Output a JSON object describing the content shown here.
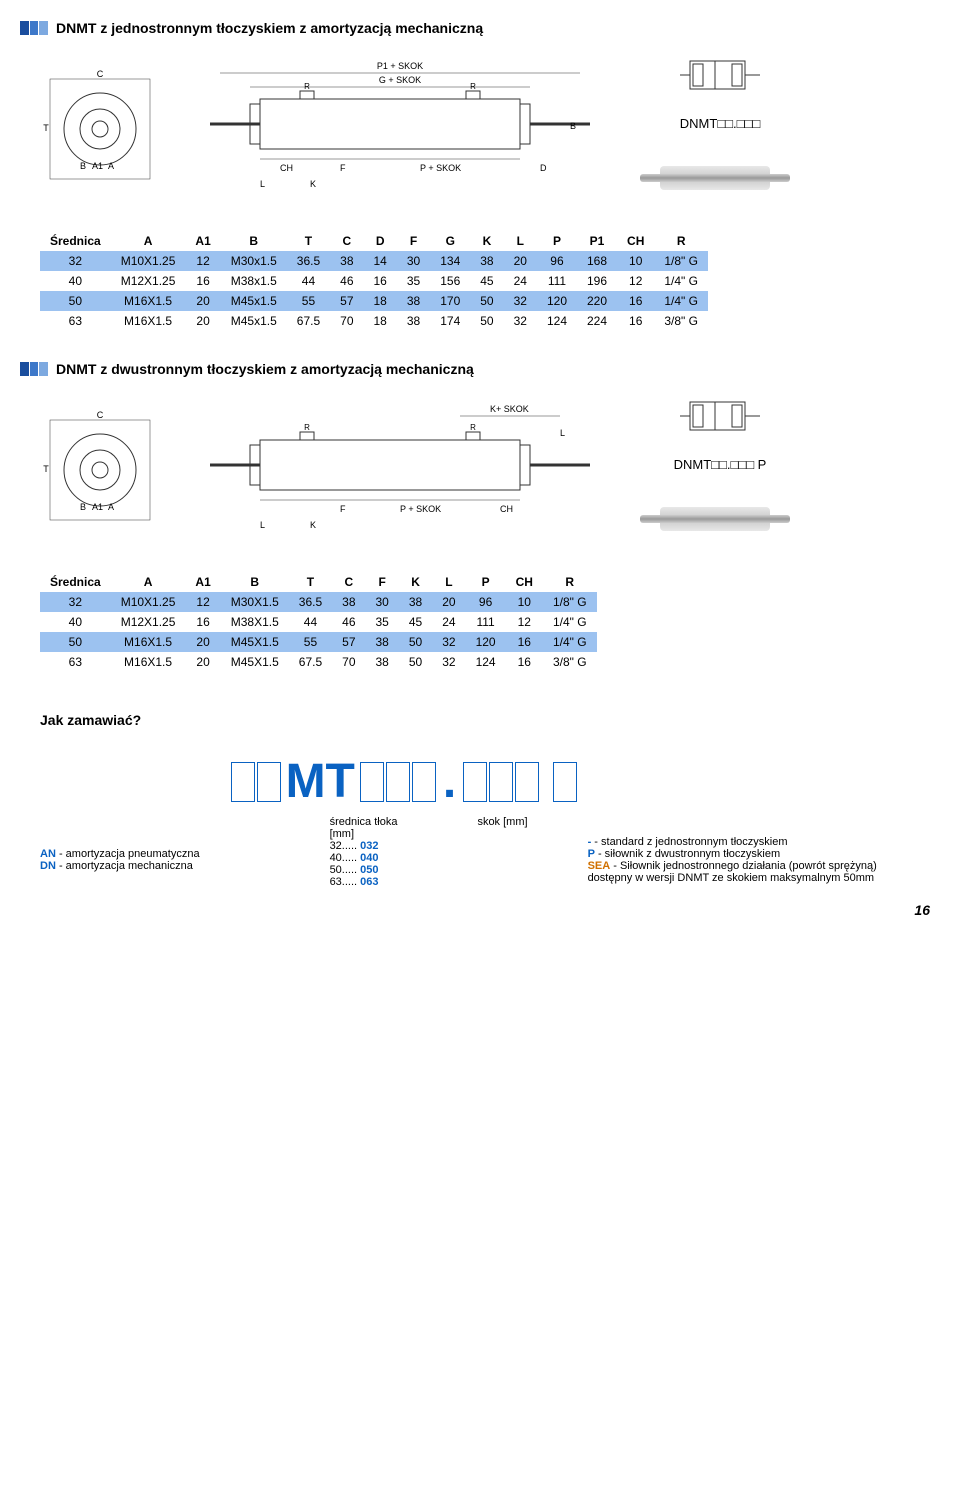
{
  "section1": {
    "title": "DNMT z jednostronnym tłoczyskiem z amortyzacją mechaniczną",
    "model_code": "DNMT□□.□□□",
    "diagram_labels": {
      "top": "P1 + SKOK",
      "mid": "G + SKOK",
      "bottom": "P + SKOK",
      "side_C": "C",
      "side_T": "T",
      "side_B": "B",
      "side_A1": "A1",
      "side_A": "A",
      "main_R": "R",
      "main_CH": "CH",
      "main_F": "F",
      "main_D": "D",
      "main_L": "L",
      "main_K": "K",
      "main_B": "B"
    },
    "table": {
      "columns": [
        "Średnica",
        "A",
        "A1",
        "B",
        "T",
        "C",
        "D",
        "F",
        "G",
        "K",
        "L",
        "P",
        "P1",
        "CH",
        "R"
      ],
      "rows": [
        [
          "32",
          "M10X1.25",
          "12",
          "M30x1.5",
          "36.5",
          "38",
          "14",
          "30",
          "134",
          "38",
          "20",
          "96",
          "168",
          "10",
          "1/8\" G"
        ],
        [
          "40",
          "M12X1.25",
          "16",
          "M38x1.5",
          "44",
          "46",
          "16",
          "35",
          "156",
          "45",
          "24",
          "111",
          "196",
          "12",
          "1/4\" G"
        ],
        [
          "50",
          "M16X1.5",
          "20",
          "M45x1.5",
          "55",
          "57",
          "18",
          "38",
          "170",
          "50",
          "32",
          "120",
          "220",
          "16",
          "1/4\" G"
        ],
        [
          "63",
          "M16X1.5",
          "20",
          "M45x1.5",
          "67.5",
          "70",
          "18",
          "38",
          "174",
          "50",
          "32",
          "124",
          "224",
          "16",
          "3/8\" G"
        ]
      ],
      "highlight_rows": [
        0,
        2
      ]
    }
  },
  "section2": {
    "title": "DNMT z dwustronnym tłoczyskiem z amortyzacją mechaniczną",
    "model_code": "DNMT□□.□□□ P",
    "diagram_labels": {
      "top": "K+ SKOK",
      "bottom": "P + SKOK",
      "side_C": "C",
      "side_T": "T",
      "side_B": "B",
      "side_A1": "A1",
      "side_A": "A",
      "main_R": "R",
      "main_F": "F",
      "main_CH": "CH",
      "main_L": "L",
      "main_K": "K"
    },
    "table": {
      "columns": [
        "Średnica",
        "A",
        "A1",
        "B",
        "T",
        "C",
        "F",
        "K",
        "L",
        "P",
        "CH",
        "R"
      ],
      "rows": [
        [
          "32",
          "M10X1.25",
          "12",
          "M30X1.5",
          "36.5",
          "38",
          "30",
          "38",
          "20",
          "96",
          "10",
          "1/8\" G"
        ],
        [
          "40",
          "M12X1.25",
          "16",
          "M38X1.5",
          "44",
          "46",
          "35",
          "45",
          "24",
          "111",
          "12",
          "1/4\" G"
        ],
        [
          "50",
          "M16X1.5",
          "20",
          "M45X1.5",
          "55",
          "57",
          "38",
          "50",
          "32",
          "120",
          "16",
          "1/4\" G"
        ],
        [
          "63",
          "M16X1.5",
          "20",
          "M45X1.5",
          "67.5",
          "70",
          "38",
          "50",
          "32",
          "124",
          "16",
          "3/8\" G"
        ]
      ],
      "highlight_rows": [
        0,
        2
      ]
    }
  },
  "order": {
    "heading": "Jak zamawiać?",
    "pattern_mid": "MT",
    "col_left": {
      "an_label": "AN",
      "an_text": " - amortyzacja pneumatyczna",
      "dn_label": "DN",
      "dn_text": " - amortyzacja mechaniczna"
    },
    "col_diameter": {
      "title1": "średnica tłoka",
      "title2": "[mm]",
      "lines": [
        {
          "a": "32.....",
          "b": "032"
        },
        {
          "a": "40.....",
          "b": "040"
        },
        {
          "a": "50.....",
          "b": "050"
        },
        {
          "a": "63.....",
          "b": "063"
        }
      ]
    },
    "col_stroke": {
      "title": "skok [mm]"
    },
    "col_type": {
      "lines": [
        {
          "p": "-",
          "t": " - standard z jednostronnym tłoczyskiem"
        },
        {
          "p": "P",
          "t": " - siłownik z dwustronnym tłoczyskiem"
        },
        {
          "p": "SEA",
          "t": " - Siłownik jednostronnego działania (powrót sprężyną)"
        }
      ],
      "extra": "dostępny w wersji DNMT ze skokiem maksymalnym 50mm"
    }
  },
  "page_number": "16",
  "colors": {
    "highlight": "#9cc2f0",
    "accent": "#0a62c2",
    "orange": "#d07000"
  }
}
